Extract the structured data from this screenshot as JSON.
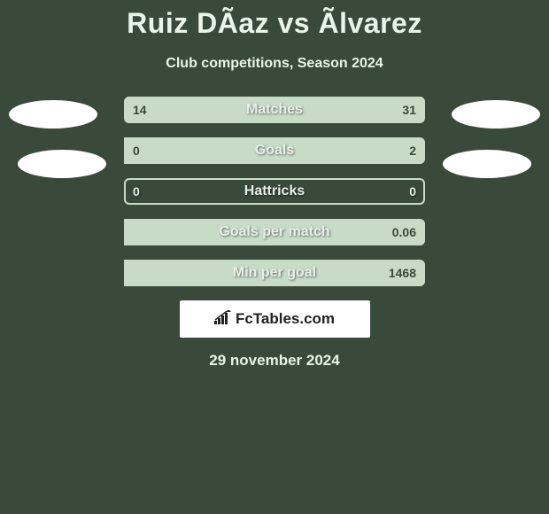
{
  "title": "Ruiz DÃ­az vs Ãlvarez",
  "subtitle": "Club competitions, Season 2024",
  "date": "29 november 2024",
  "logo_text": "FcTables.com",
  "colors": {
    "bg": "#3a4a3a",
    "bar_border": "#c8dac8",
    "bar_fill": "#c8dac8",
    "text_light": "#e8f5e8",
    "text_dark": "#384838",
    "avatar": "#ffffff",
    "logo_bg": "#ffffff",
    "logo_text": "#222222"
  },
  "bars": [
    {
      "label": "Matches",
      "left_val": "14",
      "right_val": "31",
      "left_pct": 31,
      "right_pct": 69,
      "left_light": false,
      "right_light": false
    },
    {
      "label": "Goals",
      "left_val": "0",
      "right_val": "2",
      "left_pct": 0,
      "right_pct": 100,
      "left_light": false,
      "right_light": false
    },
    {
      "label": "Hattricks",
      "left_val": "0",
      "right_val": "0",
      "left_pct": 0,
      "right_pct": 0,
      "left_light": true,
      "right_light": true
    },
    {
      "label": "Goals per match",
      "left_val": "",
      "right_val": "0.06",
      "left_pct": 0,
      "right_pct": 100,
      "left_light": false,
      "right_light": false
    },
    {
      "label": "Min per goal",
      "left_val": "",
      "right_val": "1468",
      "left_pct": 0,
      "right_pct": 100,
      "left_light": false,
      "right_light": false
    }
  ]
}
